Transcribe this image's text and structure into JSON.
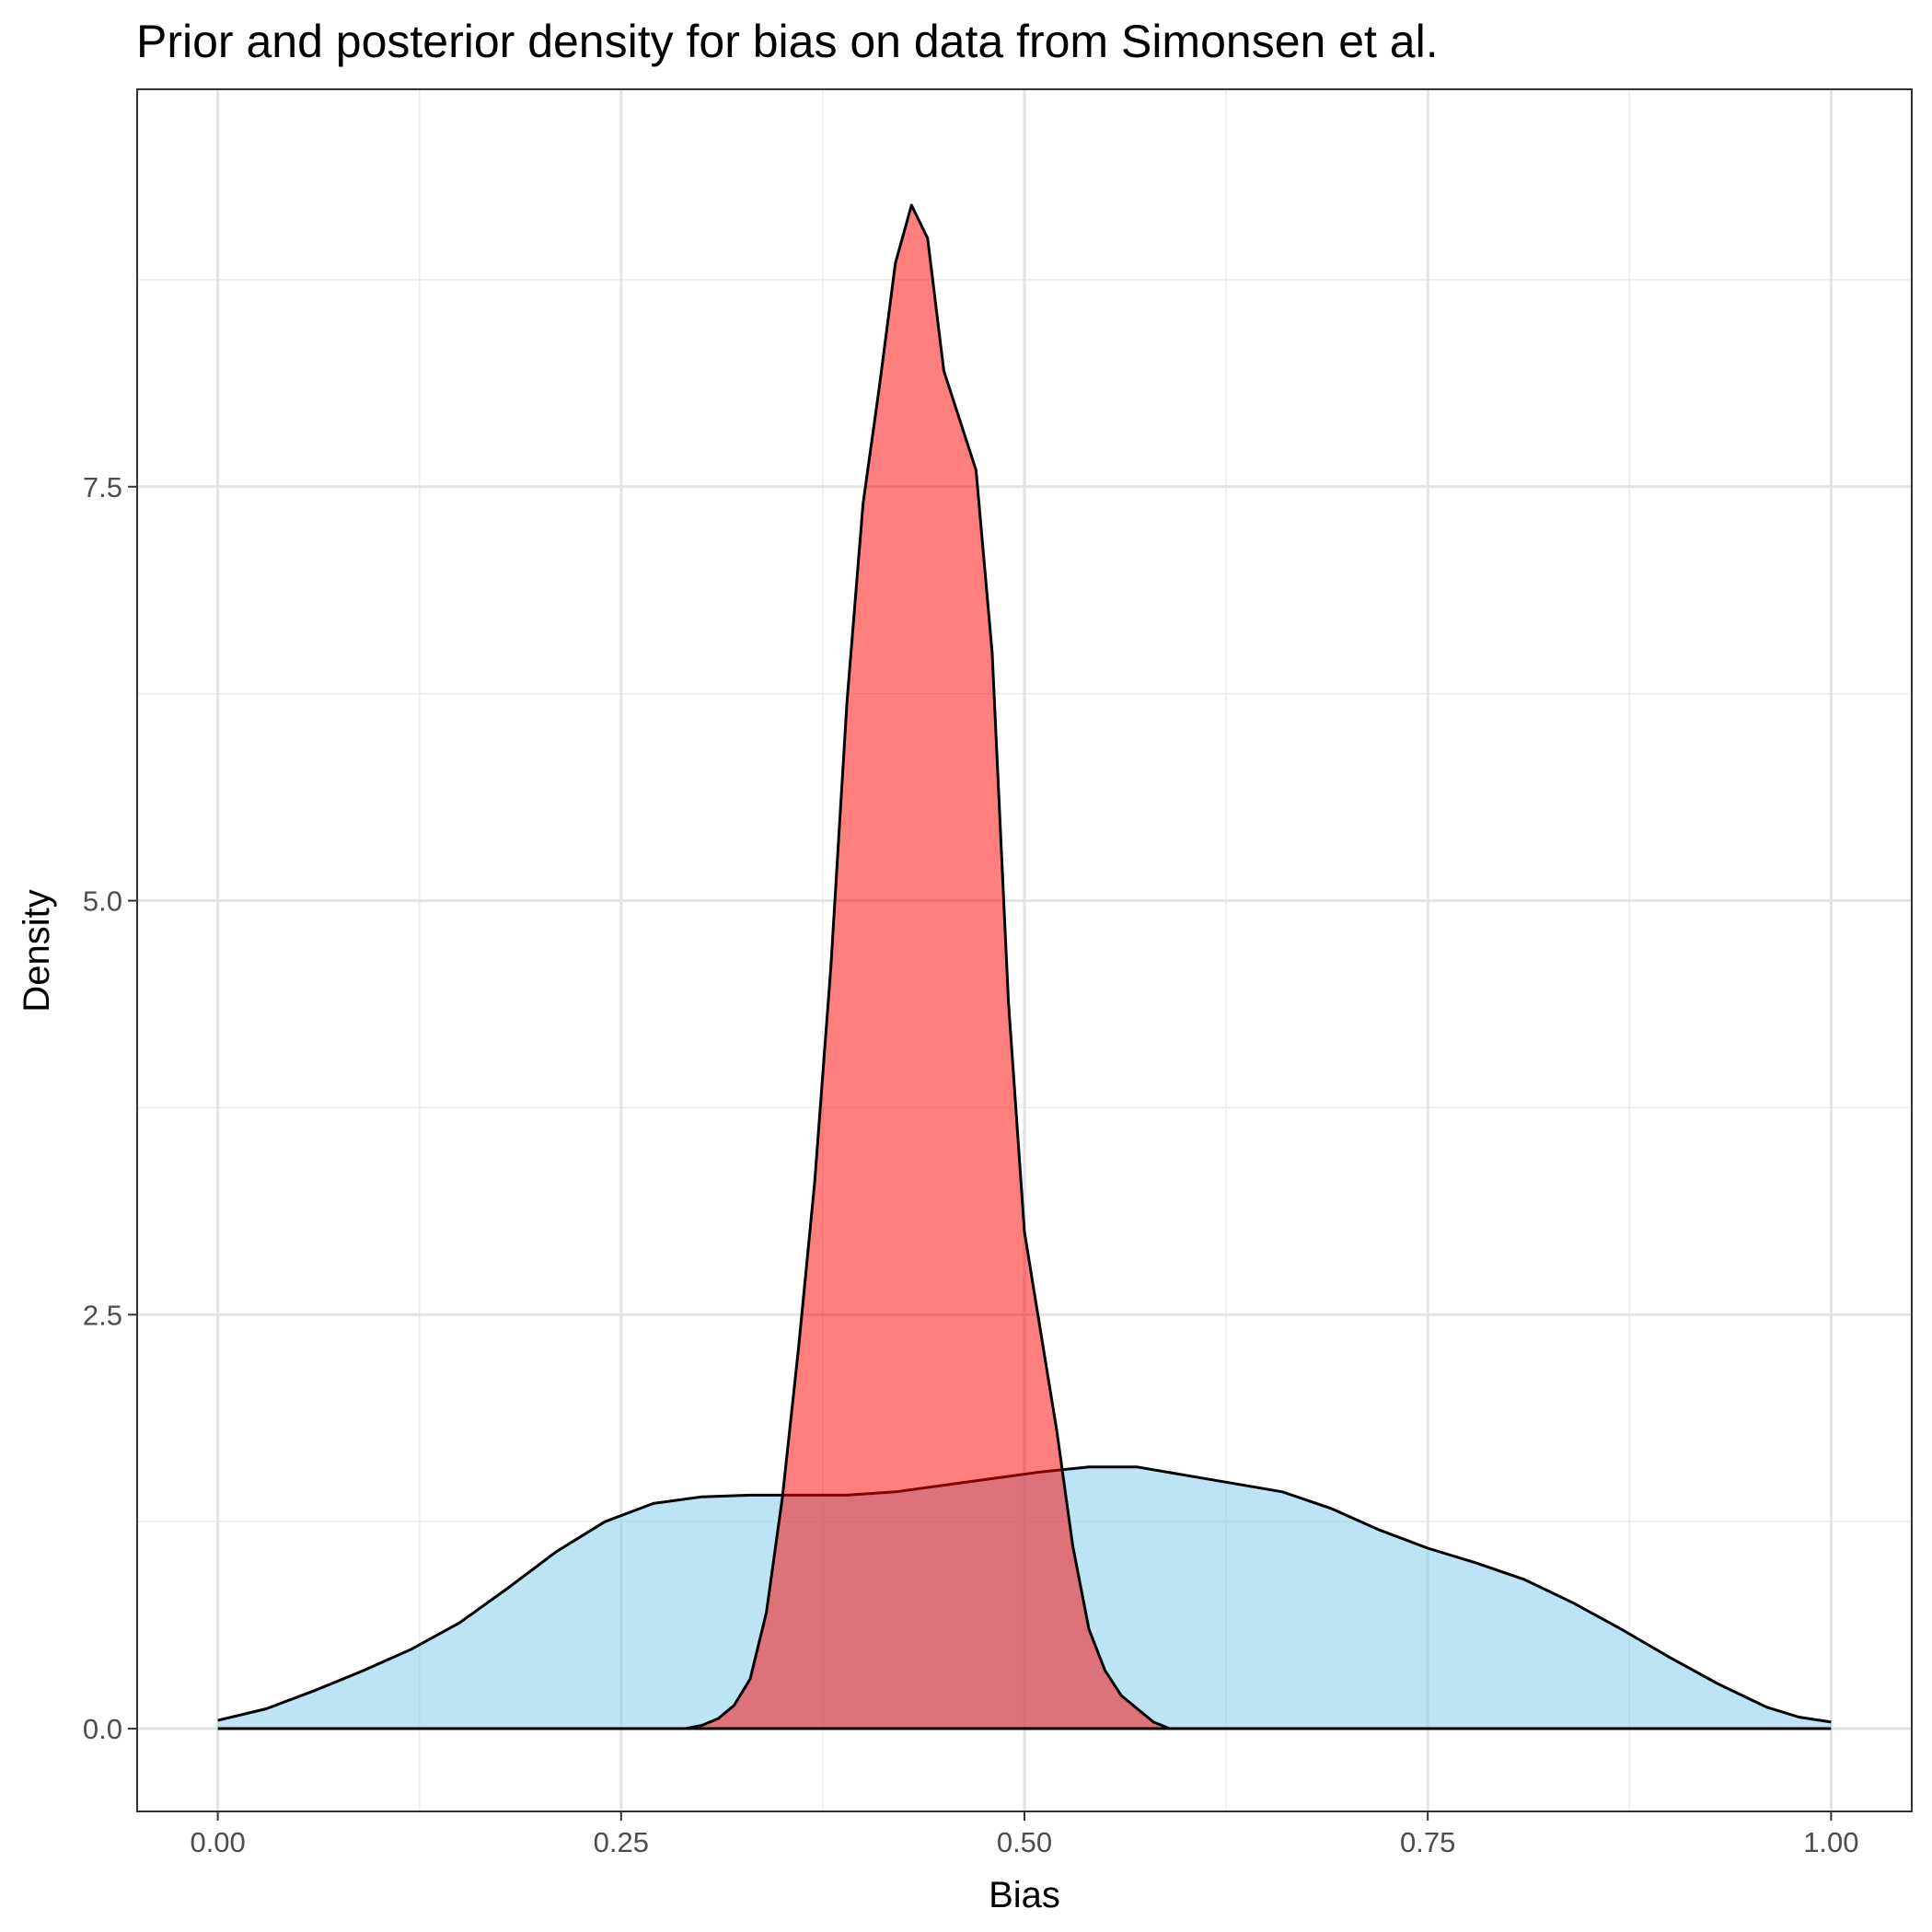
{
  "chart_data": {
    "type": "area",
    "title": "Prior and posterior density for bias on data from Simonsen et al.",
    "xlabel": "Bias",
    "ylabel": "Density",
    "xlim": [
      -0.05,
      1.05
    ],
    "ylim": [
      -0.5,
      9.9
    ],
    "x_ticks": [
      0.0,
      0.25,
      0.5,
      0.75,
      1.0
    ],
    "x_tick_labels": [
      "0.00",
      "0.25",
      "0.50",
      "0.75",
      "1.00"
    ],
    "y_ticks": [
      0.0,
      2.5,
      5.0,
      7.5
    ],
    "y_tick_labels": [
      "0.0",
      "2.5",
      "5.0",
      "7.5"
    ],
    "grid": true,
    "legend": "none",
    "series": [
      {
        "color": "#87CEEB",
        "opacity": 0.55,
        "points": [
          [
            0.0,
            0.05
          ],
          [
            0.03,
            0.12
          ],
          [
            0.06,
            0.23
          ],
          [
            0.09,
            0.35
          ],
          [
            0.12,
            0.48
          ],
          [
            0.15,
            0.64
          ],
          [
            0.18,
            0.85
          ],
          [
            0.21,
            1.07
          ],
          [
            0.24,
            1.25
          ],
          [
            0.27,
            1.36
          ],
          [
            0.3,
            1.4
          ],
          [
            0.33,
            1.41
          ],
          [
            0.36,
            1.41
          ],
          [
            0.39,
            1.41
          ],
          [
            0.42,
            1.43
          ],
          [
            0.45,
            1.47
          ],
          [
            0.48,
            1.51
          ],
          [
            0.51,
            1.55
          ],
          [
            0.54,
            1.58
          ],
          [
            0.57,
            1.58
          ],
          [
            0.6,
            1.53
          ],
          [
            0.63,
            1.48
          ],
          [
            0.66,
            1.43
          ],
          [
            0.69,
            1.33
          ],
          [
            0.72,
            1.2
          ],
          [
            0.75,
            1.09
          ],
          [
            0.78,
            1.0
          ],
          [
            0.81,
            0.9
          ],
          [
            0.84,
            0.76
          ],
          [
            0.87,
            0.6
          ],
          [
            0.9,
            0.43
          ],
          [
            0.93,
            0.27
          ],
          [
            0.96,
            0.13
          ],
          [
            0.98,
            0.07
          ],
          [
            1.0,
            0.04
          ]
        ]
      },
      {
        "color": "#FF0000",
        "opacity": 0.5,
        "points": [
          [
            0.28,
            0.0
          ],
          [
            0.29,
            0.0
          ],
          [
            0.3,
            0.02
          ],
          [
            0.31,
            0.06
          ],
          [
            0.32,
            0.14
          ],
          [
            0.33,
            0.3
          ],
          [
            0.34,
            0.7
          ],
          [
            0.35,
            1.4
          ],
          [
            0.36,
            2.3
          ],
          [
            0.37,
            3.3
          ],
          [
            0.38,
            4.6
          ],
          [
            0.39,
            6.2
          ],
          [
            0.4,
            7.4
          ],
          [
            0.41,
            8.1
          ],
          [
            0.42,
            8.85
          ],
          [
            0.43,
            9.2
          ],
          [
            0.44,
            9.0
          ],
          [
            0.45,
            8.2
          ],
          [
            0.46,
            7.9
          ],
          [
            0.47,
            7.6
          ],
          [
            0.48,
            6.5
          ],
          [
            0.49,
            4.4
          ],
          [
            0.5,
            3.0
          ],
          [
            0.51,
            2.4
          ],
          [
            0.52,
            1.8
          ],
          [
            0.53,
            1.1
          ],
          [
            0.54,
            0.6
          ],
          [
            0.55,
            0.35
          ],
          [
            0.56,
            0.2
          ],
          [
            0.57,
            0.12
          ],
          [
            0.58,
            0.04
          ],
          [
            0.59,
            0.0
          ]
        ]
      }
    ]
  }
}
